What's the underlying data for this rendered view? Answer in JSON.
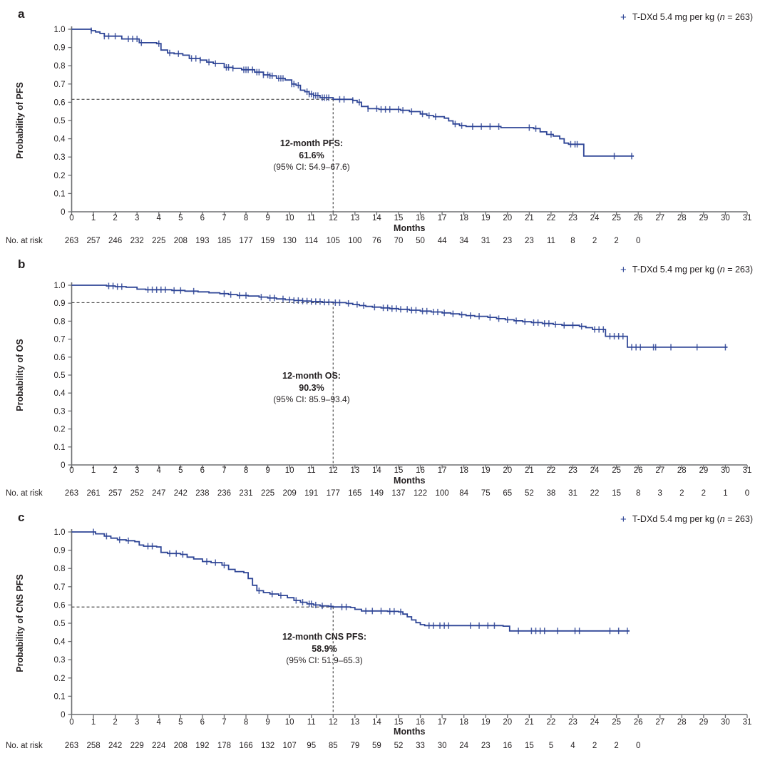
{
  "colors": {
    "curve": "#2e4596",
    "text": "#231f20",
    "axis": "#6d6e71",
    "dash": "#4d4d4d"
  },
  "legend": {
    "marker": "+",
    "pre": "T-DXd 5.4 mg per kg (",
    "n": "n",
    "post": " = 263)"
  },
  "at_risk_label": "No. at risk",
  "chart_data": [
    {
      "type": "line",
      "subtype": "kaplan-meier-step",
      "panel_label": "a",
      "ylabel": "Probability of PFS",
      "xlabel": "Months",
      "xlim": [
        0,
        31
      ],
      "ylim": [
        0,
        1.0
      ],
      "xtick_step": 1,
      "ytick_step": 0.1,
      "grid": false,
      "legend_position": "top-right",
      "landmark": {
        "x": 12,
        "y": 0.616
      },
      "annotation": {
        "line1": "12-month PFS:",
        "line2": "61.6%",
        "line3": "(95% CI: 54.9–67.6)"
      },
      "steps": [
        [
          0,
          1.0
        ],
        [
          0.9,
          0.992
        ],
        [
          1.1,
          0.985
        ],
        [
          1.3,
          0.977
        ],
        [
          1.5,
          0.962
        ],
        [
          2.3,
          0.947
        ],
        [
          3.1,
          0.926
        ],
        [
          3.9,
          0.921
        ],
        [
          4.1,
          0.886
        ],
        [
          4.4,
          0.87
        ],
        [
          4.7,
          0.866
        ],
        [
          5.1,
          0.858
        ],
        [
          5.4,
          0.84
        ],
        [
          5.9,
          0.831
        ],
        [
          6.2,
          0.82
        ],
        [
          6.5,
          0.812
        ],
        [
          7.0,
          0.791
        ],
        [
          7.4,
          0.786
        ],
        [
          7.8,
          0.778
        ],
        [
          8.4,
          0.765
        ],
        [
          8.8,
          0.75
        ],
        [
          9.1,
          0.745
        ],
        [
          9.4,
          0.731
        ],
        [
          9.8,
          0.722
        ],
        [
          10.1,
          0.7
        ],
        [
          10.3,
          0.693
        ],
        [
          10.5,
          0.666
        ],
        [
          10.7,
          0.658
        ],
        [
          10.9,
          0.645
        ],
        [
          11.1,
          0.637
        ],
        [
          11.4,
          0.625
        ],
        [
          12.0,
          0.616
        ],
        [
          12.9,
          0.61
        ],
        [
          13.1,
          0.6
        ],
        [
          13.3,
          0.577
        ],
        [
          13.6,
          0.565
        ],
        [
          14.1,
          0.561
        ],
        [
          15.1,
          0.556
        ],
        [
          15.5,
          0.549
        ],
        [
          16.0,
          0.536
        ],
        [
          16.3,
          0.527
        ],
        [
          16.6,
          0.521
        ],
        [
          17.1,
          0.513
        ],
        [
          17.3,
          0.498
        ],
        [
          17.5,
          0.481
        ],
        [
          17.8,
          0.472
        ],
        [
          18.1,
          0.467
        ],
        [
          19.7,
          0.461
        ],
        [
          21.2,
          0.456
        ],
        [
          21.5,
          0.438
        ],
        [
          21.8,
          0.424
        ],
        [
          22.1,
          0.415
        ],
        [
          22.4,
          0.4
        ],
        [
          22.6,
          0.376
        ],
        [
          22.8,
          0.37
        ],
        [
          23.5,
          0.305
        ],
        [
          25.8,
          0.305
        ]
      ],
      "censors": [
        0.9,
        1.5,
        1.7,
        2.0,
        2.6,
        2.8,
        3.0,
        3.2,
        4.0,
        4.5,
        4.9,
        5.5,
        5.7,
        5.9,
        6.3,
        6.6,
        7.1,
        7.2,
        7.4,
        7.9,
        8.0,
        8.1,
        8.3,
        8.5,
        8.6,
        8.8,
        9.0,
        9.1,
        9.2,
        9.5,
        9.6,
        9.7,
        10.1,
        10.2,
        10.4,
        10.8,
        10.9,
        11.0,
        11.1,
        11.2,
        11.3,
        11.5,
        11.6,
        11.7,
        11.8,
        12.3,
        12.5,
        12.9,
        13.2,
        13.6,
        14.0,
        14.2,
        14.4,
        14.6,
        15.0,
        15.2,
        15.6,
        16.1,
        16.4,
        16.7,
        17.6,
        17.9,
        18.4,
        18.8,
        19.2,
        19.6,
        21.0,
        21.3,
        22.0,
        22.9,
        23.1,
        23.2,
        24.9,
        25.7
      ],
      "at_risk": [
        263,
        257,
        246,
        232,
        225,
        208,
        193,
        185,
        177,
        159,
        130,
        114,
        105,
        100,
        76,
        70,
        50,
        44,
        34,
        31,
        23,
        23,
        11,
        8,
        2,
        2,
        0
      ]
    },
    {
      "type": "line",
      "subtype": "kaplan-meier-step",
      "panel_label": "b",
      "ylabel": "Probability of OS",
      "xlabel": "Months",
      "xlim": [
        0,
        31
      ],
      "ylim": [
        0,
        1.0
      ],
      "xtick_step": 1,
      "ytick_step": 0.1,
      "grid": false,
      "legend_position": "top-right",
      "landmark": {
        "x": 12,
        "y": 0.903
      },
      "annotation": {
        "line1": "12-month OS:",
        "line2": "90.3%",
        "line3": "(95% CI: 85.9–93.4)"
      },
      "steps": [
        [
          0,
          1.0
        ],
        [
          1.6,
          0.996
        ],
        [
          2.0,
          0.992
        ],
        [
          2.5,
          0.989
        ],
        [
          3.0,
          0.978
        ],
        [
          3.4,
          0.975
        ],
        [
          4.6,
          0.971
        ],
        [
          5.2,
          0.967
        ],
        [
          5.8,
          0.963
        ],
        [
          6.3,
          0.958
        ],
        [
          6.8,
          0.953
        ],
        [
          7.2,
          0.948
        ],
        [
          7.6,
          0.943
        ],
        [
          8.1,
          0.94
        ],
        [
          8.6,
          0.934
        ],
        [
          9.0,
          0.929
        ],
        [
          9.4,
          0.924
        ],
        [
          9.8,
          0.919
        ],
        [
          10.2,
          0.915
        ],
        [
          10.6,
          0.912
        ],
        [
          11.0,
          0.909
        ],
        [
          11.5,
          0.906
        ],
        [
          12.0,
          0.903
        ],
        [
          12.6,
          0.899
        ],
        [
          12.9,
          0.893
        ],
        [
          13.2,
          0.887
        ],
        [
          13.5,
          0.882
        ],
        [
          13.8,
          0.878
        ],
        [
          14.2,
          0.874
        ],
        [
          14.6,
          0.87
        ],
        [
          15.0,
          0.866
        ],
        [
          15.5,
          0.861
        ],
        [
          16.0,
          0.856
        ],
        [
          16.5,
          0.851
        ],
        [
          17.0,
          0.846
        ],
        [
          17.4,
          0.841
        ],
        [
          17.8,
          0.836
        ],
        [
          18.1,
          0.831
        ],
        [
          18.5,
          0.827
        ],
        [
          19.1,
          0.821
        ],
        [
          19.5,
          0.814
        ],
        [
          19.9,
          0.808
        ],
        [
          20.3,
          0.802
        ],
        [
          20.7,
          0.797
        ],
        [
          21.1,
          0.792
        ],
        [
          21.6,
          0.787
        ],
        [
          22.1,
          0.782
        ],
        [
          22.5,
          0.777
        ],
        [
          23.3,
          0.771
        ],
        [
          23.6,
          0.764
        ],
        [
          23.9,
          0.754
        ],
        [
          24.5,
          0.716
        ],
        [
          25.5,
          0.655
        ],
        [
          30.1,
          0.655
        ]
      ],
      "censors": [
        1.7,
        1.9,
        2.1,
        2.3,
        3.5,
        3.7,
        3.9,
        4.1,
        4.3,
        4.7,
        5.0,
        5.6,
        7.0,
        7.3,
        7.7,
        8.0,
        8.7,
        9.1,
        9.3,
        9.7,
        10.0,
        10.2,
        10.4,
        10.6,
        10.8,
        11.0,
        11.2,
        11.4,
        11.6,
        11.8,
        12.1,
        12.3,
        12.7,
        13.1,
        13.4,
        13.9,
        14.3,
        14.5,
        14.7,
        14.9,
        15.1,
        15.4,
        15.6,
        15.8,
        16.1,
        16.3,
        16.6,
        16.8,
        17.1,
        17.5,
        17.9,
        18.3,
        18.7,
        19.2,
        19.6,
        20.0,
        20.4,
        20.8,
        21.2,
        21.4,
        21.7,
        21.9,
        22.2,
        22.6,
        23.0,
        23.4,
        24.0,
        24.2,
        24.4,
        24.7,
        24.9,
        25.1,
        25.3,
        25.7,
        25.9,
        26.1,
        26.7,
        26.8,
        27.5,
        28.7,
        30.0
      ],
      "at_risk": [
        263,
        261,
        257,
        252,
        247,
        242,
        238,
        236,
        231,
        225,
        209,
        191,
        177,
        165,
        149,
        137,
        122,
        100,
        84,
        75,
        65,
        52,
        38,
        31,
        22,
        15,
        8,
        3,
        2,
        2,
        1,
        0
      ]
    },
    {
      "type": "line",
      "subtype": "kaplan-meier-step",
      "panel_label": "c",
      "ylabel": "Probability of CNS PFS",
      "xlabel": "Months",
      "xlim": [
        0,
        31
      ],
      "ylim": [
        0,
        1.0
      ],
      "xtick_step": 1,
      "ytick_step": 0.1,
      "grid": false,
      "legend_position": "top-right",
      "landmark": {
        "x": 12,
        "y": 0.589
      },
      "annotation": {
        "line1": "12-month CNS PFS:",
        "line2": "58.9%",
        "line3": "(95% CI: 51.9–65.3)"
      },
      "steps": [
        [
          0,
          1.0
        ],
        [
          1.1,
          0.99
        ],
        [
          1.5,
          0.977
        ],
        [
          1.8,
          0.966
        ],
        [
          2.1,
          0.957
        ],
        [
          2.5,
          0.952
        ],
        [
          2.9,
          0.947
        ],
        [
          3.1,
          0.928
        ],
        [
          3.3,
          0.922
        ],
        [
          3.9,
          0.918
        ],
        [
          4.1,
          0.888
        ],
        [
          4.4,
          0.882
        ],
        [
          5.0,
          0.877
        ],
        [
          5.3,
          0.862
        ],
        [
          5.6,
          0.852
        ],
        [
          6.0,
          0.838
        ],
        [
          6.4,
          0.832
        ],
        [
          6.9,
          0.818
        ],
        [
          7.2,
          0.795
        ],
        [
          7.5,
          0.783
        ],
        [
          7.9,
          0.777
        ],
        [
          8.1,
          0.745
        ],
        [
          8.3,
          0.708
        ],
        [
          8.5,
          0.678
        ],
        [
          8.8,
          0.668
        ],
        [
          9.1,
          0.66
        ],
        [
          9.5,
          0.652
        ],
        [
          9.9,
          0.64
        ],
        [
          10.2,
          0.625
        ],
        [
          10.5,
          0.615
        ],
        [
          10.8,
          0.606
        ],
        [
          11.1,
          0.6
        ],
        [
          11.4,
          0.595
        ],
        [
          11.8,
          0.592
        ],
        [
          12.0,
          0.589
        ],
        [
          12.8,
          0.586
        ],
        [
          13.0,
          0.576
        ],
        [
          13.3,
          0.567
        ],
        [
          14.5,
          0.565
        ],
        [
          15.0,
          0.562
        ],
        [
          15.2,
          0.55
        ],
        [
          15.4,
          0.535
        ],
        [
          15.6,
          0.518
        ],
        [
          15.8,
          0.503
        ],
        [
          16.0,
          0.492
        ],
        [
          16.2,
          0.487
        ],
        [
          19.8,
          0.484
        ],
        [
          20.1,
          0.458
        ],
        [
          25.6,
          0.458
        ]
      ],
      "censors": [
        1.0,
        1.6,
        2.2,
        2.6,
        3.5,
        3.7,
        4.5,
        4.8,
        5.1,
        6.2,
        6.6,
        7.0,
        8.6,
        9.2,
        9.6,
        10.3,
        10.6,
        10.9,
        11.0,
        11.2,
        11.5,
        11.9,
        12.4,
        12.6,
        13.5,
        13.8,
        14.2,
        14.6,
        14.8,
        15.1,
        16.4,
        16.6,
        16.9,
        17.1,
        17.3,
        18.3,
        18.7,
        19.1,
        19.4,
        20.5,
        21.1,
        21.3,
        21.5,
        21.7,
        22.3,
        23.1,
        23.3,
        24.7,
        25.1,
        25.5
      ],
      "at_risk": [
        263,
        258,
        242,
        229,
        224,
        208,
        192,
        178,
        166,
        132,
        107,
        95,
        85,
        79,
        59,
        52,
        33,
        30,
        24,
        23,
        16,
        15,
        5,
        4,
        2,
        2,
        0
      ]
    }
  ]
}
